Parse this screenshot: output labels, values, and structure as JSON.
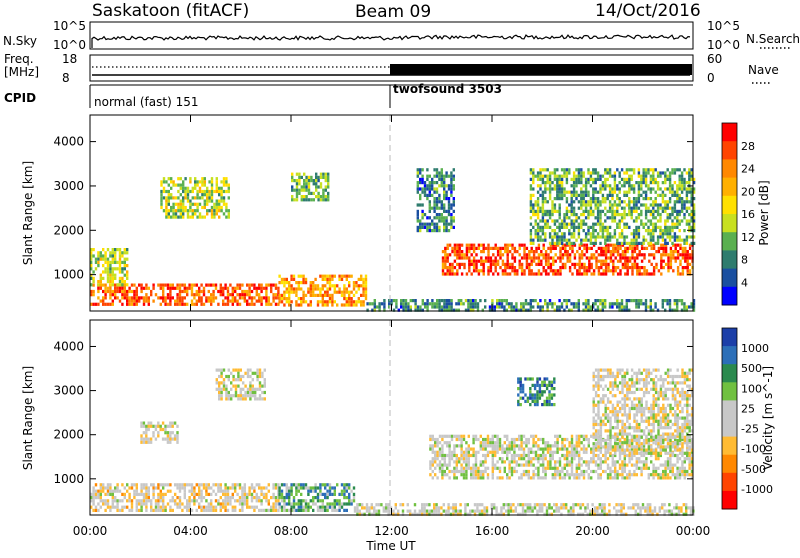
{
  "header": {
    "station": "Saskatoon (fitACF)",
    "beam": "Beam 09",
    "date": "14/Oct/2016"
  },
  "noise_panel": {
    "left_label": "N.Sky",
    "left_ticks": [
      "10^5",
      "10^0"
    ],
    "right_label": "N.Search",
    "right_ticks": [
      "10^5",
      "10^0"
    ]
  },
  "freq_panel": {
    "left_label_1": "Freq.",
    "left_label_2": "[MHz]",
    "left_ticks": [
      "18",
      "8"
    ],
    "right_label": "Nave",
    "right_ticks": [
      "60",
      "0"
    ]
  },
  "cpid_panel": {
    "label": "CPID",
    "modes": [
      {
        "name": "normal (fast)",
        "id": "151",
        "start_hour": 0
      },
      {
        "name": "twofsound",
        "id": "3503",
        "start_hour": 12
      }
    ]
  },
  "chart_data": [
    {
      "type": "heatmap",
      "title": "",
      "ylabel": "Slant Range [km]",
      "xlabel": "",
      "ylim": [
        180,
        4600
      ],
      "yticks": [
        1000,
        2000,
        3000,
        4000
      ],
      "xlim": [
        0,
        24
      ],
      "colorbar": {
        "label": "Power [dB]",
        "ticks": [
          "28",
          "24",
          "20",
          "16",
          "12",
          "8",
          "4"
        ],
        "colors": [
          "#ff0000",
          "#ff4400",
          "#ff8800",
          "#ffb000",
          "#ffe000",
          "#c8e020",
          "#5ab050",
          "#2e7c6e",
          "#1a4fa0",
          "#0000ff"
        ]
      },
      "echo_regions": [
        {
          "t0": 0.0,
          "t1": 7.5,
          "r0": 300,
          "r1": 800,
          "level": 0.82
        },
        {
          "t0": 7.5,
          "t1": 11.0,
          "r0": 300,
          "r1": 1000,
          "level": 0.7
        },
        {
          "t0": 11.0,
          "t1": 24.0,
          "r0": 200,
          "r1": 450,
          "level": 0.25
        },
        {
          "t0": 0.0,
          "t1": 1.5,
          "r0": 800,
          "r1": 1600,
          "level": 0.45
        },
        {
          "t0": 2.8,
          "t1": 5.5,
          "r0": 2300,
          "r1": 3200,
          "level": 0.45
        },
        {
          "t0": 8.0,
          "t1": 9.5,
          "r0": 2700,
          "r1": 3300,
          "level": 0.35
        },
        {
          "t0": 13.0,
          "t1": 14.5,
          "r0": 2000,
          "r1": 3400,
          "level": 0.25
        },
        {
          "t0": 14.0,
          "t1": 24.0,
          "r0": 1000,
          "r1": 1700,
          "level": 0.85
        },
        {
          "t0": 17.5,
          "t1": 24.0,
          "r0": 1700,
          "r1": 3400,
          "level": 0.35
        }
      ]
    },
    {
      "type": "heatmap",
      "title": "",
      "ylabel": "Slant Range [km]",
      "xlabel": "Time UT",
      "ylim": [
        180,
        4600
      ],
      "yticks": [
        1000,
        2000,
        3000,
        4000
      ],
      "xlim": [
        0,
        24
      ],
      "xticks": [
        "00:00",
        "04:00",
        "08:00",
        "12:00",
        "16:00",
        "20:00",
        "00:00"
      ],
      "colorbar": {
        "label": "Velocity [m s^-1]",
        "ticks": [
          "1000",
          "500",
          "100",
          "25",
          "-25",
          "-100",
          "-500",
          "-1000"
        ],
        "colors": [
          "#1c3fa8",
          "#2c6fb8",
          "#2b8a4e",
          "#70c040",
          "#c8c8c8",
          "#c8c8c8",
          "#ffbb33",
          "#ff8800",
          "#ff4400",
          "#ff0000"
        ]
      },
      "echo_regions": [
        {
          "t0": 0.0,
          "t1": 7.5,
          "r0": 250,
          "r1": 900,
          "level": 0.45
        },
        {
          "t0": 7.5,
          "t1": 10.5,
          "r0": 300,
          "r1": 900,
          "level": 0.7
        },
        {
          "t0": 10.5,
          "t1": 24.0,
          "r0": 200,
          "r1": 450,
          "level": 0.5
        },
        {
          "t0": 2.0,
          "t1": 3.5,
          "r0": 1800,
          "r1": 2300,
          "level": 0.5
        },
        {
          "t0": 5.0,
          "t1": 7.0,
          "r0": 2800,
          "r1": 3500,
          "level": 0.5
        },
        {
          "t0": 13.5,
          "t1": 24.0,
          "r0": 1000,
          "r1": 2000,
          "level": 0.5
        },
        {
          "t0": 17.0,
          "t1": 18.5,
          "r0": 2700,
          "r1": 3300,
          "level": 0.78
        },
        {
          "t0": 20.0,
          "t1": 24.0,
          "r0": 1600,
          "r1": 3500,
          "level": 0.48
        }
      ]
    }
  ]
}
